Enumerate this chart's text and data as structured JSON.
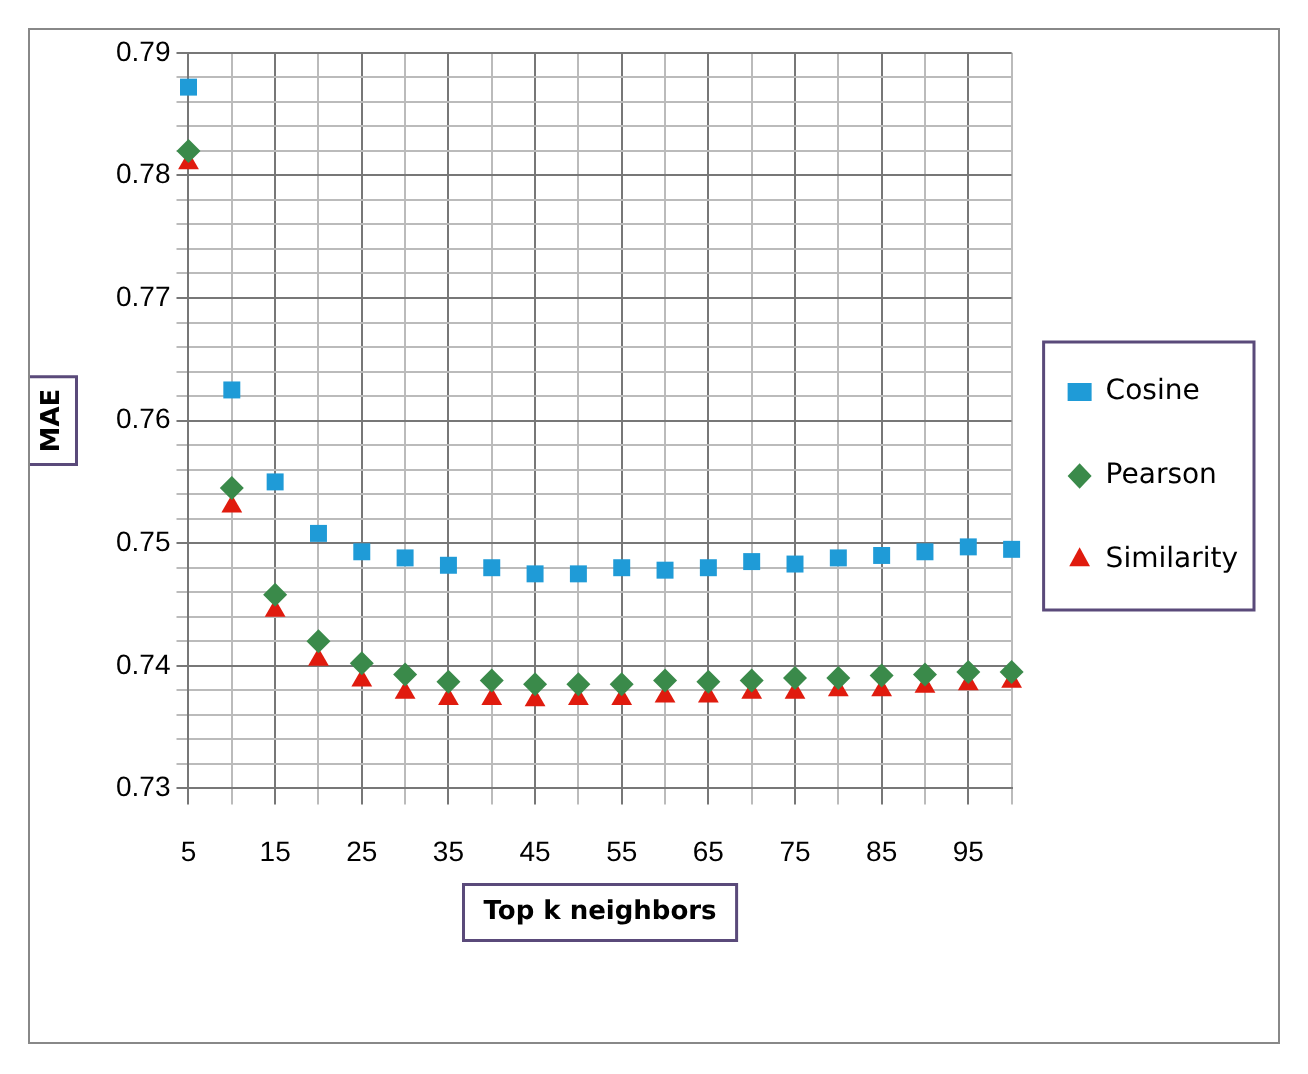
{
  "chart_data": {
    "type": "scatter",
    "xlabel": "Top k neighbors",
    "ylabel": "MAE",
    "x": [
      5,
      10,
      15,
      20,
      25,
      30,
      35,
      40,
      45,
      50,
      55,
      60,
      65,
      70,
      75,
      80,
      85,
      90,
      95,
      100
    ],
    "xlim": [
      5,
      100
    ],
    "xticks": [
      5,
      {
        "value": 10,
        "label": null
      },
      15,
      {
        "value": 20,
        "label": null
      },
      25,
      {
        "value": 30,
        "label": null
      },
      35,
      {
        "value": 40,
        "label": null
      },
      45,
      {
        "value": 50,
        "label": null
      },
      55,
      {
        "value": 60,
        "label": null
      },
      65,
      {
        "value": 70,
        "label": null
      },
      75,
      {
        "value": 80,
        "label": null
      },
      85,
      {
        "value": 90,
        "label": null
      },
      95,
      {
        "value": 100,
        "label": null
      }
    ],
    "ylim": [
      0.73,
      0.79
    ],
    "yticks": [
      0.73,
      {
        "value": 0.732,
        "label": null
      },
      {
        "value": 0.734,
        "label": null
      },
      {
        "value": 0.736,
        "label": null
      },
      {
        "value": 0.738,
        "label": null
      },
      0.74,
      {
        "value": 0.742,
        "label": null
      },
      {
        "value": 0.744,
        "label": null
      },
      {
        "value": 0.746,
        "label": null
      },
      {
        "value": 0.748,
        "label": null
      },
      0.75,
      {
        "value": 0.752,
        "label": null
      },
      {
        "value": 0.754,
        "label": null
      },
      {
        "value": 0.756,
        "label": null
      },
      {
        "value": 0.758,
        "label": null
      },
      0.76,
      {
        "value": 0.762,
        "label": null
      },
      {
        "value": 0.764,
        "label": null
      },
      {
        "value": 0.766,
        "label": null
      },
      {
        "value": 0.768,
        "label": null
      },
      0.77,
      {
        "value": 0.772,
        "label": null
      },
      {
        "value": 0.774,
        "label": null
      },
      {
        "value": 0.776,
        "label": null
      },
      {
        "value": 0.778,
        "label": null
      },
      0.78,
      {
        "value": 0.782,
        "label": null
      },
      {
        "value": 0.784,
        "label": null
      },
      {
        "value": 0.786,
        "label": null
      },
      {
        "value": 0.788,
        "label": null
      },
      0.79
    ],
    "grid": true,
    "legend": "right",
    "series": [
      {
        "name": "Cosine",
        "color": "#1f9bd7",
        "marker": "square",
        "values": [
          0.7872,
          0.7625,
          0.755,
          0.7508,
          0.7493,
          0.7488,
          0.7482,
          0.748,
          0.7475,
          0.7475,
          0.748,
          0.7478,
          0.748,
          0.7485,
          0.7483,
          0.7488,
          0.749,
          0.7493,
          0.7497,
          0.7495
        ]
      },
      {
        "name": "Pearson",
        "color": "#3a8a4a",
        "marker": "diamond",
        "values": [
          0.782,
          0.7545,
          0.7458,
          0.742,
          0.7402,
          0.7393,
          0.7387,
          0.7388,
          0.7385,
          0.7385,
          0.7385,
          0.7388,
          0.7387,
          0.7388,
          0.739,
          0.739,
          0.7392,
          0.7393,
          0.7395,
          0.7395
        ]
      },
      {
        "name": "Similarity",
        "color": "#e01b0e",
        "marker": "triangle",
        "values": [
          0.781,
          0.753,
          0.7445,
          0.7405,
          0.7388,
          0.7378,
          0.7373,
          0.7373,
          0.7372,
          0.7373,
          0.7373,
          0.7375,
          0.7375,
          0.7378,
          0.7378,
          0.738,
          0.738,
          0.7383,
          0.7385,
          0.7387
        ]
      }
    ]
  }
}
